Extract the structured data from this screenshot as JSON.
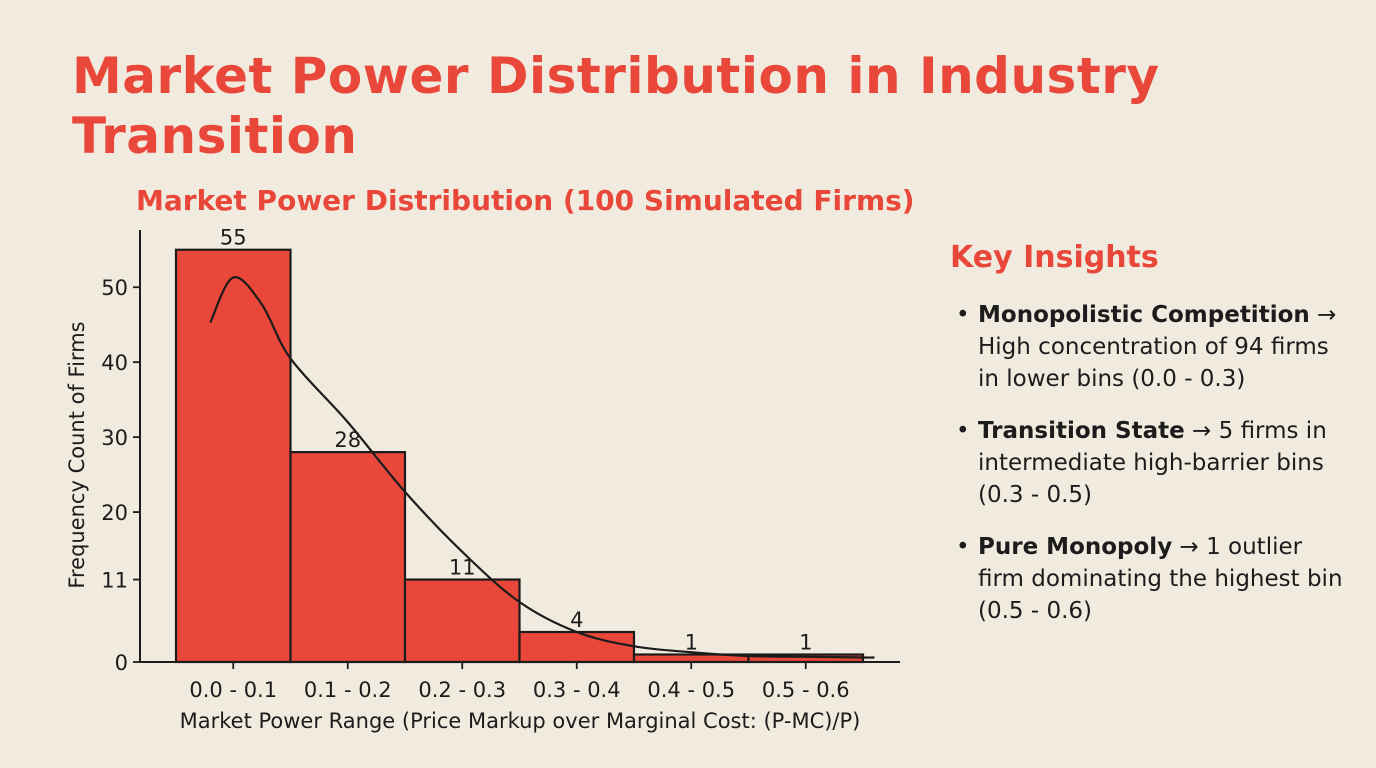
{
  "title": "Market Power Distribution in Industry Transition",
  "chart_data": {
    "type": "bar",
    "title": "Market Power Distribution (100 Simulated Firms)",
    "xlabel": "Market Power Range (Price Markup over Marginal Cost: (P-MC)/P)",
    "ylabel": "Frequency Count of Firms",
    "categories": [
      "0.0 - 0.1",
      "0.1 - 0.2",
      "0.2 - 0.3",
      "0.3 - 0.4",
      "0.4 - 0.5",
      "0.5 - 0.6"
    ],
    "values": [
      55,
      28,
      11,
      4,
      1,
      1
    ],
    "data_labels": [
      "55",
      "28",
      "11",
      "4",
      "1",
      "1"
    ],
    "yticks": [
      0,
      11,
      20,
      30,
      40,
      50
    ],
    "ylim": [
      0,
      57.5
    ],
    "grid": false,
    "bar_color": "#e8473a",
    "trend_curve": {
      "type": "line",
      "x": [
        -0.2,
        0.0,
        0.25,
        0.5,
        1.0,
        1.5,
        2.0,
        2.5,
        3.0,
        3.5,
        4.0,
        4.5,
        5.0,
        5.5,
        5.6
      ],
      "y": [
        45.3,
        51.3,
        47.7,
        40.5,
        32.0,
        22.7,
        14.7,
        8.0,
        4.0,
        2.1,
        1.3,
        0.8,
        0.7,
        0.6,
        0.6
      ]
    }
  },
  "insights": {
    "title": "Key Insights",
    "items": [
      {
        "bold": "Monopolistic Competition",
        "arrow": "→",
        "text": "High concentration of 94 firms in lower bins (0.0 - 0.3)"
      },
      {
        "bold": "Transition State",
        "arrow": "→",
        "text": "5 firms in intermediate high-barrier bins (0.3 - 0.5)"
      },
      {
        "bold": "Pure Monopoly",
        "arrow": "→",
        "text": "1 outlier firm dominating the highest bin (0.5 - 0.6)"
      }
    ]
  }
}
